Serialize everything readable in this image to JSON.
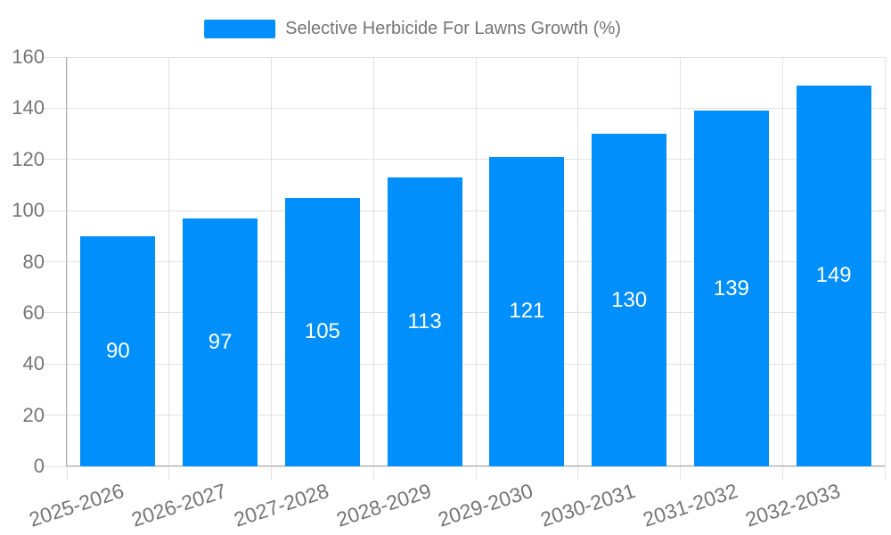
{
  "chart_data": {
    "type": "bar",
    "title": "Selective Herbicide For Lawns Growth (%)",
    "categories": [
      "2025-2026",
      "2026-2027",
      "2027-2028",
      "2028-2029",
      "2029-2030",
      "2030-2031",
      "2031-2032",
      "2032-2033"
    ],
    "series": [
      {
        "name": "Selective Herbicide For Lawns Growth (%)",
        "values": [
          90,
          97,
          105,
          113,
          121,
          130,
          139,
          149
        ]
      }
    ],
    "xlabel": "",
    "ylabel": "",
    "ylim": [
      0,
      160
    ],
    "ytick_step": 20,
    "yticks": [
      0,
      20,
      40,
      60,
      80,
      100,
      120,
      140,
      160
    ],
    "grid": true,
    "legend_position": "top",
    "data_labels": "inside-center",
    "colors": {
      "bar": "#008FFB",
      "data_label": "#ffffff",
      "axis_text": "#757575",
      "gridline": "#e2e2e2",
      "axis_line": "#aeaeae"
    }
  }
}
